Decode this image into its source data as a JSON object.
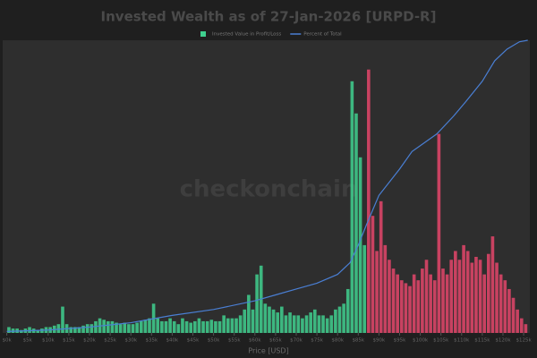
{
  "chart_data": {
    "type": "histogram",
    "title": "Invested Wealth as of 27-Jan-2026 [URPD-R]",
    "x_label": "Price [USD]",
    "watermark": "checkonchain",
    "bins": [
      0,
      1,
      2,
      3,
      4,
      5,
      6,
      7,
      8,
      9,
      10,
      11,
      12,
      13,
      14,
      15,
      16,
      17,
      18,
      19,
      20,
      21,
      22,
      23,
      24,
      25,
      26,
      27,
      28,
      29,
      30,
      31,
      32,
      33,
      34,
      35,
      36,
      37,
      38,
      39,
      40,
      41,
      42,
      43,
      44,
      45,
      46,
      47,
      48,
      49,
      50,
      51,
      52,
      53,
      54,
      55,
      56,
      57,
      58,
      59,
      60,
      61,
      62,
      63,
      64,
      65,
      66,
      67,
      68,
      69,
      70,
      71,
      72,
      73,
      74,
      75,
      76,
      77,
      78,
      79,
      80,
      81,
      82,
      83,
      84,
      85,
      86,
      87,
      88,
      89,
      90,
      91,
      92,
      93,
      94,
      95,
      96,
      97,
      98,
      99,
      100,
      101,
      102,
      103,
      104,
      105,
      106,
      107,
      108,
      109,
      110,
      111,
      112,
      113,
      114,
      115,
      116,
      117,
      118,
      119,
      120,
      121,
      122,
      123,
      124,
      125,
      126
    ],
    "series": [
      {
        "name": "Invested Value in Profit/Loss",
        "color": "#3fcf8e",
        "values": [
          2,
          1.5,
          1.5,
          1,
          1.5,
          2,
          1.5,
          1,
          1.5,
          2,
          2,
          2.5,
          3,
          9,
          3,
          2,
          2,
          2,
          2.5,
          3,
          3,
          4,
          5,
          4.5,
          4,
          4,
          3.5,
          3,
          3.5,
          3,
          3,
          3.5,
          4,
          4.5,
          5,
          10,
          5,
          4,
          4,
          5,
          4,
          3,
          5,
          4,
          3.5,
          4,
          5,
          4,
          4,
          4.5,
          4,
          4,
          6,
          5,
          5,
          5,
          6,
          8,
          13,
          8,
          20,
          23,
          10,
          9,
          8,
          7,
          9,
          6,
          7,
          6,
          6,
          5,
          6,
          7,
          8,
          6,
          6,
          5,
          6,
          8,
          9,
          10,
          15,
          86,
          75,
          60,
          30,
          90,
          40,
          28,
          45,
          30,
          25,
          22,
          20,
          18,
          17,
          16,
          20,
          18,
          22,
          25,
          20,
          18,
          68,
          22,
          20,
          25,
          28,
          25,
          30,
          28,
          24,
          26,
          25,
          20,
          27,
          33,
          24,
          20,
          18,
          15,
          12,
          8,
          5,
          3
        ],
        "bar_colors": [
          "#3fcf8e",
          "#3fcf8e",
          "#3fcf8e",
          "#3fcf8e",
          "#3fcf8e",
          "#3fcf8e",
          "#3fcf8e",
          "#3fcf8e",
          "#3fcf8e",
          "#3fcf8e",
          "#3fcf8e",
          "#3fcf8e",
          "#3fcf8e",
          "#3fcf8e",
          "#3fcf8e",
          "#3fcf8e",
          "#3fcf8e",
          "#3fcf8e",
          "#3fcf8e",
          "#3fcf8e",
          "#3fcf8e",
          "#3fcf8e",
          "#3fcf8e",
          "#3fcf8e",
          "#3fcf8e",
          "#3fcf8e",
          "#3fcf8e",
          "#3fcf8e",
          "#3fcf8e",
          "#3fcf8e",
          "#3fcf8e",
          "#3fcf8e",
          "#3fcf8e",
          "#3fcf8e",
          "#3fcf8e",
          "#3fcf8e",
          "#3fcf8e",
          "#3fcf8e",
          "#3fcf8e",
          "#3fcf8e",
          "#3fcf8e",
          "#3fcf8e",
          "#3fcf8e",
          "#3fcf8e",
          "#3fcf8e",
          "#3fcf8e",
          "#3fcf8e",
          "#3fcf8e",
          "#3fcf8e",
          "#3fcf8e",
          "#3fcf8e",
          "#3fcf8e",
          "#3fcf8e",
          "#3fcf8e",
          "#3fcf8e",
          "#3fcf8e",
          "#3fcf8e",
          "#3fcf8e",
          "#3fcf8e",
          "#3fcf8e",
          "#3fcf8e",
          "#3fcf8e",
          "#3fcf8e",
          "#3fcf8e",
          "#3fcf8e",
          "#3fcf8e",
          "#3fcf8e",
          "#3fcf8e",
          "#3fcf8e",
          "#3fcf8e",
          "#3fcf8e",
          "#3fcf8e",
          "#3fcf8e",
          "#3fcf8e",
          "#3fcf8e",
          "#3fcf8e",
          "#3fcf8e",
          "#3fcf8e",
          "#3fcf8e",
          "#3fcf8e",
          "#3fcf8e",
          "#3fcf8e",
          "#3fcf8e",
          "#3fcf8e",
          "#3fcf8e",
          "#3fcf8e",
          "#3fcf8e",
          "#e3456a",
          "#e3456a",
          "#e3456a",
          "#e3456a",
          "#e3456a",
          "#e3456a",
          "#e3456a",
          "#e3456a",
          "#e3456a",
          "#e3456a",
          "#e3456a",
          "#e3456a",
          "#e3456a",
          "#e3456a",
          "#e3456a",
          "#e3456a",
          "#e3456a",
          "#e3456a",
          "#e3456a",
          "#e3456a",
          "#e3456a",
          "#e3456a",
          "#e3456a",
          "#e3456a",
          "#e3456a",
          "#e3456a",
          "#e3456a",
          "#e3456a",
          "#e3456a",
          "#e3456a",
          "#e3456a",
          "#e3456a",
          "#e3456a",
          "#e3456a",
          "#e3456a",
          "#e3456a",
          "#e3456a",
          "#e3456a",
          "#e3456a"
        ]
      },
      {
        "name": "Percent of Total",
        "type": "line",
        "axis": "y2",
        "color": "#4a7fd4",
        "x": [
          0,
          10,
          20,
          30,
          40,
          50,
          60,
          65,
          70,
          75,
          80,
          83,
          85,
          87,
          90,
          95,
          98,
          100,
          104,
          108,
          111,
          115,
          118,
          121,
          124,
          126
        ],
        "values": [
          0.5,
          1,
          2,
          3.5,
          6,
          8,
          11,
          13,
          15,
          17,
          20,
          24,
          30,
          37,
          47,
          56,
          62,
          64,
          68,
          74,
          79,
          86,
          93,
          97,
          99.5,
          100
        ]
      }
    ],
    "xlim": [
      -1,
      126.5
    ],
    "ylim": [
      0,
      100
    ],
    "y2lim": [
      0,
      100
    ],
    "xticks": [
      {
        "value": 0,
        "label": "$0k"
      },
      {
        "value": 5,
        "label": "$5k"
      },
      {
        "value": 10,
        "label": "$10k"
      },
      {
        "value": 15,
        "label": "$15k"
      },
      {
        "value": 20,
        "label": "$20k"
      },
      {
        "value": 25,
        "label": "$25k"
      },
      {
        "value": 30,
        "label": "$30k"
      },
      {
        "value": 35,
        "label": "$35k"
      },
      {
        "value": 40,
        "label": "$40k"
      },
      {
        "value": 45,
        "label": "$45k"
      },
      {
        "value": 50,
        "label": "$50k"
      },
      {
        "value": 55,
        "label": "$55k"
      },
      {
        "value": 60,
        "label": "$60k"
      },
      {
        "value": 65,
        "label": "$65k"
      },
      {
        "value": 70,
        "label": "$70k"
      },
      {
        "value": 75,
        "label": "$75k"
      },
      {
        "value": 80,
        "label": "$80k"
      },
      {
        "value": 85,
        "label": "$85k"
      },
      {
        "value": 90,
        "label": "$90k"
      },
      {
        "value": 95,
        "label": "$95k"
      },
      {
        "value": 100,
        "label": "$100k"
      },
      {
        "value": 105,
        "label": "$105k"
      },
      {
        "value": 110,
        "label": "$110k"
      },
      {
        "value": 115,
        "label": "$115k"
      },
      {
        "value": 120,
        "label": "$120k"
      },
      {
        "value": 125,
        "label": "$125k"
      }
    ],
    "grid": false
  }
}
